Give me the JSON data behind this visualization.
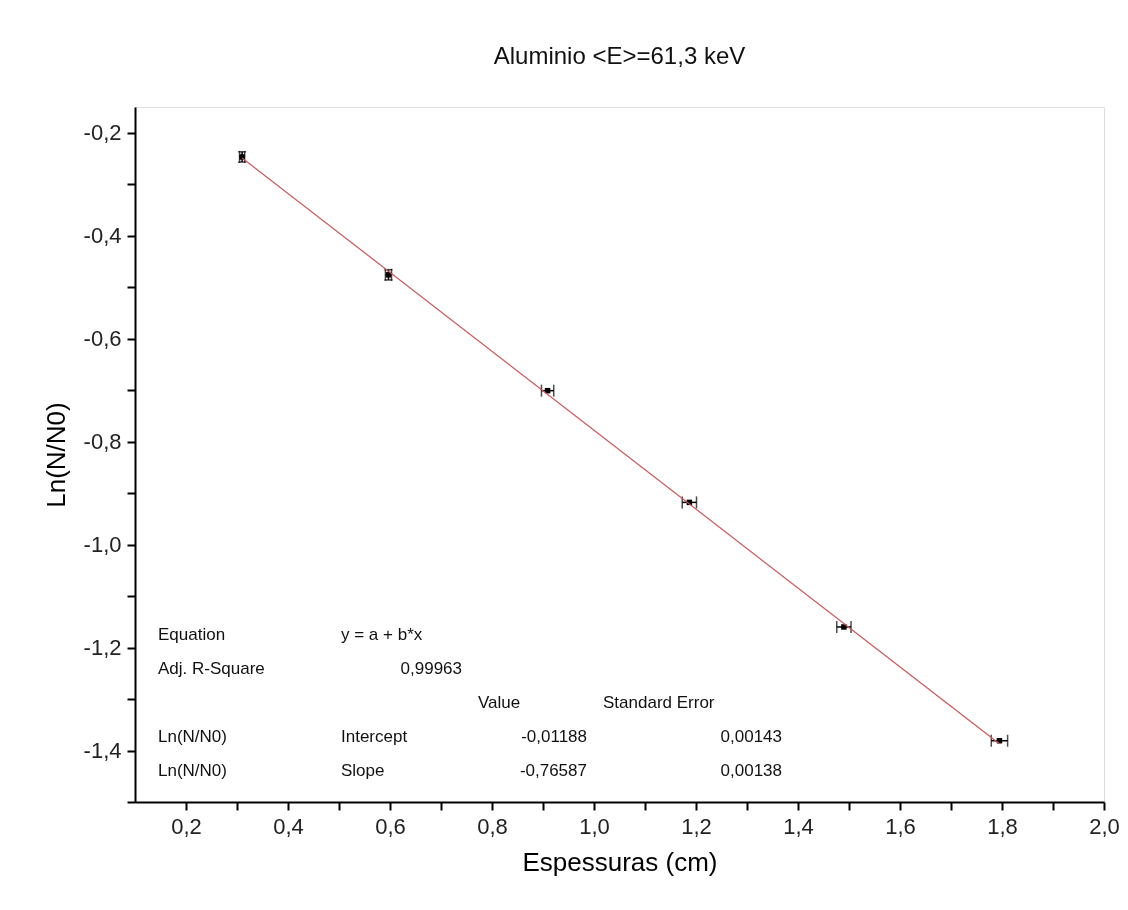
{
  "chart_data": {
    "type": "scatter",
    "title": "Aluminio <E>=61,3 keV",
    "xlabel": "Espessuras (cm)",
    "ylabel": "Ln(N/N0)",
    "xlim": [
      0.1,
      2.0
    ],
    "ylim": [
      -1.5,
      -0.15
    ],
    "xticks": [
      {
        "value": 0.2,
        "label": "0,2"
      },
      {
        "value": 0.3,
        "label": null
      },
      {
        "value": 0.4,
        "label": "0,4"
      },
      {
        "value": 0.5,
        "label": null
      },
      {
        "value": 0.6,
        "label": "0,6"
      },
      {
        "value": 0.7,
        "label": null
      },
      {
        "value": 0.8,
        "label": "0,8"
      },
      {
        "value": 0.9,
        "label": null
      },
      {
        "value": 1.0,
        "label": "1,0"
      },
      {
        "value": 1.1,
        "label": null
      },
      {
        "value": 1.2,
        "label": "1,2"
      },
      {
        "value": 1.3,
        "label": null
      },
      {
        "value": 1.4,
        "label": "1,4"
      },
      {
        "value": 1.5,
        "label": null
      },
      {
        "value": 1.6,
        "label": "1,6"
      },
      {
        "value": 1.7,
        "label": null
      },
      {
        "value": 1.8,
        "label": "1,8"
      },
      {
        "value": 1.9,
        "label": null
      },
      {
        "value": 2.0,
        "label": "2,0"
      }
    ],
    "yticks": [
      {
        "value": -1.5,
        "label": null
      },
      {
        "value": -1.4,
        "label": "-1,4"
      },
      {
        "value": -1.3,
        "label": null
      },
      {
        "value": -1.2,
        "label": "-1,2"
      },
      {
        "value": -1.1,
        "label": null
      },
      {
        "value": -1.0,
        "label": "-1,0"
      },
      {
        "value": -0.9,
        "label": null
      },
      {
        "value": -0.8,
        "label": "-0,8"
      },
      {
        "value": -0.7,
        "label": null
      },
      {
        "value": -0.6,
        "label": "-0,6"
      },
      {
        "value": -0.5,
        "label": null
      },
      {
        "value": -0.4,
        "label": "-0,4"
      },
      {
        "value": -0.3,
        "label": null
      },
      {
        "value": -0.2,
        "label": "-0,2"
      }
    ],
    "grid": false,
    "series": [
      {
        "marker": "square",
        "color": "#000000",
        "x": [
          0.31,
          0.597,
          0.909,
          1.187,
          1.49,
          1.795
        ],
        "values": [
          -0.247,
          -0.476,
          -0.701,
          -0.918,
          -1.16,
          -1.381
        ],
        "errors": [
          0.01,
          0.01,
          null,
          null,
          null,
          null
        ],
        "xerrors": [
          0.005,
          0.006,
          0.012,
          0.014,
          0.014,
          0.016
        ]
      },
      {
        "type": "line",
        "color": "#cc5555",
        "line_style": "solid",
        "x": [
          0.31,
          1.795
        ],
        "values": [
          -0.249,
          -1.387
        ]
      }
    ],
    "annotations": [
      "Equation",
      "y = a + b*x",
      "Adj. R-Square",
      "0,99963",
      "Value",
      "Standard Error",
      "Ln(N/N0)",
      "Intercept",
      "-0,01188",
      "0,00143",
      "Ln(N/N0)",
      "Slope",
      "-0,76587",
      "0,00138"
    ]
  }
}
